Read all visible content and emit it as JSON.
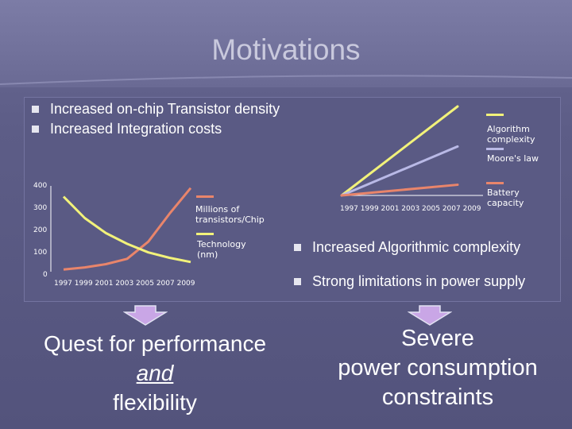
{
  "title": "Motivations",
  "bullets_top": [
    "Increased on-chip Transistor density",
    "Increased Integration costs"
  ],
  "bullets_right": [
    "Increased Algorithmic complexity",
    "Strong limitations in power supply"
  ],
  "left_caption": {
    "line1": "Quest for performance",
    "line2": "and",
    "line3": "flexibility"
  },
  "right_caption": {
    "line1": "Severe",
    "line2": "power consumption",
    "line3": "constraints"
  },
  "colors": {
    "background": "#5d5d87",
    "yellow": "#f2f27a",
    "salmon": "#e9856b",
    "lavender": "#b9b9e6",
    "arrow": "#c9a6e6"
  },
  "chart_data": [
    {
      "type": "line",
      "x_tick_label": "1997 1999 2001 2003 2005 2007 2009",
      "y_ticks": [
        "400",
        "300",
        "200",
        "100",
        "0"
      ],
      "ylim": [
        0,
        400
      ],
      "x": [
        0,
        1,
        2,
        3,
        4,
        5,
        6
      ],
      "series": [
        {
          "name": "Millions of transistors/Chip",
          "color": "#e9856b",
          "values": [
            10,
            20,
            35,
            60,
            140,
            270,
            390
          ]
        },
        {
          "name": "Technology (nm)",
          "color": "#f2f27a",
          "values": [
            350,
            250,
            180,
            130,
            90,
            65,
            45
          ]
        }
      ]
    },
    {
      "type": "line",
      "x_tick_label": "1997 1999 2001 2003 2005 2007 2009",
      "series": [
        {
          "name": "Algorithm complexity",
          "color": "#f2f27a",
          "values": [
            0,
            1
          ]
        },
        {
          "name": "Moore's law",
          "color": "#b9b9e6",
          "values": [
            0,
            0.55
          ]
        },
        {
          "name": "Battery capacity",
          "color": "#e9856b",
          "values": [
            0,
            0.12
          ]
        }
      ]
    }
  ]
}
